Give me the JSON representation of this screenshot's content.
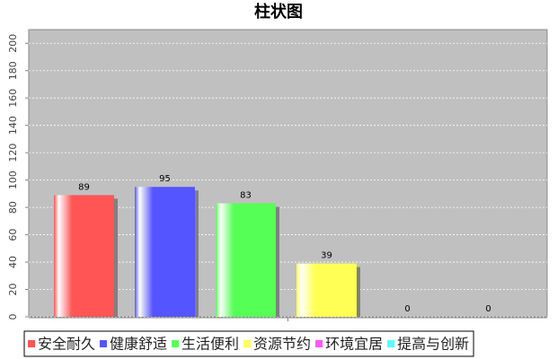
{
  "chart_data": {
    "type": "bar",
    "title": "柱状图",
    "categories": [
      null
    ],
    "series": [
      {
        "name": "安全耐久",
        "color": "#ff5555",
        "values": [
          89
        ]
      },
      {
        "name": "健康舒适",
        "color": "#5555ff",
        "values": [
          95
        ]
      },
      {
        "name": "生活便利",
        "color": "#55ff55",
        "values": [
          83
        ]
      },
      {
        "name": "资源节约",
        "color": "#ffff55",
        "values": [
          39
        ]
      },
      {
        "name": "环境宜居",
        "color": "#ff55ff",
        "values": [
          0
        ]
      },
      {
        "name": "提高与创新",
        "color": "#55ffff",
        "values": [
          0
        ]
      }
    ],
    "ylim": [
      0,
      210
    ],
    "yticks": [
      0,
      20,
      40,
      60,
      80,
      100,
      120,
      140,
      160,
      180,
      200
    ],
    "grid": true,
    "legend": "bottom",
    "show_values": true
  }
}
